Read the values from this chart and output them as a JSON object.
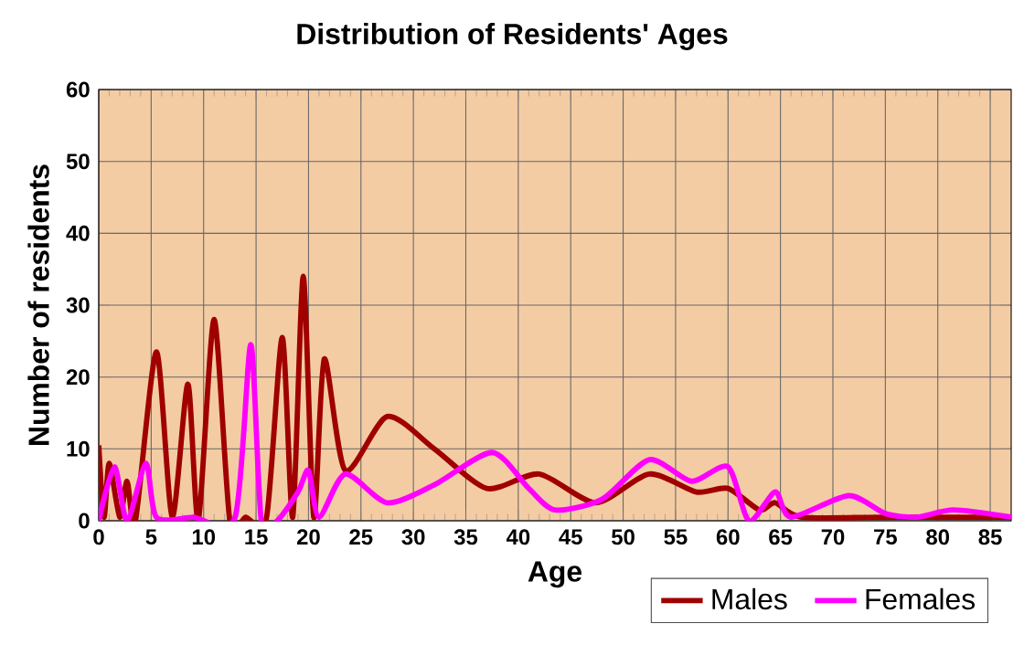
{
  "chart_data": {
    "type": "line",
    "title": "Distribution of Residents' Ages",
    "xlabel": "Age",
    "ylabel": "Number of residents",
    "xlim": [
      0,
      87
    ],
    "xticks": [
      0,
      5,
      10,
      15,
      20,
      25,
      30,
      35,
      40,
      45,
      50,
      55,
      60,
      65,
      70,
      75,
      80,
      85
    ],
    "ylim": [
      0,
      60
    ],
    "yticks": [
      0,
      10,
      20,
      30,
      40,
      50,
      60
    ],
    "grid": true,
    "legend": "bottom right",
    "series": [
      {
        "name": "Males",
        "color": "#a00000",
        "x": [
          0,
          0.5,
          1,
          2,
          2.7,
          3.5,
          5.5,
          7,
          8.5,
          9.5,
          11,
          12.5,
          14,
          16,
          17.5,
          18.5,
          19.5,
          20.5,
          21.5,
          23.5,
          27.5,
          32,
          37,
          42,
          47.4,
          52.5,
          57,
          60,
          63,
          64.5,
          67,
          75,
          87
        ],
        "values": [
          10.5,
          0.5,
          8,
          0.5,
          5.5,
          0,
          23.5,
          0.5,
          19,
          0,
          28,
          0,
          0.5,
          0.5,
          25.5,
          0.5,
          34,
          0.5,
          22.5,
          7,
          14.5,
          10,
          4.5,
          6.5,
          2.5,
          6.5,
          4,
          4.5,
          1.5,
          2.5,
          0.5,
          0.5,
          0.5
        ]
      },
      {
        "name": "Females",
        "color": "#ff00ff",
        "x": [
          0,
          1.5,
          2.7,
          4.5,
          5.5,
          9,
          13,
          14.5,
          15.5,
          17,
          19,
          20,
          21,
          23.5,
          27.5,
          32,
          37.5,
          41,
          43.5,
          48,
          52.5,
          56.5,
          60,
          62,
          64.5,
          66,
          71.5,
          75,
          78,
          81.5,
          87
        ],
        "values": [
          0,
          7.5,
          0,
          8,
          0.5,
          0.5,
          0.5,
          24.5,
          0,
          0,
          4,
          7,
          0.5,
          6.5,
          2.5,
          5,
          9.5,
          4.5,
          1.5,
          3,
          8.5,
          5.5,
          7.5,
          0,
          4,
          0.5,
          3.5,
          1,
          0.5,
          1.5,
          0.5
        ]
      }
    ]
  }
}
